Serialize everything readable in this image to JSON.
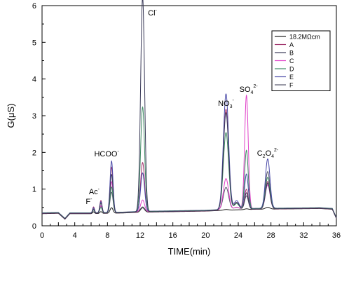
{
  "chart_data": {
    "type": "line",
    "title": "",
    "xlabel": "TIME(min)",
    "ylabel": "G(μS)",
    "xlim": [
      0,
      36
    ],
    "ylim": [
      0,
      6
    ],
    "xticks": [
      "0",
      "2",
      "4",
      "6",
      "8",
      "10",
      "12",
      "14",
      "16",
      "18",
      "20",
      "22",
      "24",
      "26",
      "28",
      "30",
      "32",
      "34",
      "36"
    ],
    "yticks": [
      "0",
      "1",
      "2",
      "3",
      "4",
      "5",
      "6"
    ],
    "grid": false,
    "legend_position": "top-right",
    "peaks": [
      {
        "name": "F",
        "charge": "-",
        "x": 6.3
      },
      {
        "name": "Ac",
        "charge": "-",
        "x": 7.2
      },
      {
        "name": "HCOO",
        "charge": "-",
        "x": 8.5
      },
      {
        "name": "Cl",
        "charge": "-",
        "x": 12.3
      },
      {
        "name": "NO",
        "sub": "3",
        "charge": "-",
        "x": 22.5
      },
      {
        "name": "SO",
        "sub": "4",
        "charge": "2-",
        "x": 25.0
      },
      {
        "name": "C",
        "sub": "2",
        "name2": "O",
        "sub2": "4",
        "charge": "2-",
        "x": 27.6
      }
    ],
    "baseline": {
      "x": [
        0,
        2,
        2.8,
        3.4,
        6,
        10,
        12,
        20,
        22,
        26,
        30,
        34,
        35.5,
        36
      ],
      "y": [
        0.33,
        0.34,
        0.18,
        0.33,
        0.33,
        0.35,
        0.37,
        0.4,
        0.42,
        0.45,
        0.46,
        0.47,
        0.45,
        0.2
      ]
    },
    "series": [
      {
        "name": "18.2MΩcm",
        "color": "#1c1c1c",
        "heights": [
          0.05,
          0.05,
          0.15,
          0.12,
          0.02,
          0.02,
          0.05
        ]
      },
      {
        "name": "A",
        "color": "#a0306a",
        "heights": [
          0.18,
          0.35,
          1.25,
          1.35,
          2.75,
          0.55,
          0.75
        ]
      },
      {
        "name": "B",
        "color": "#3a3a58",
        "heights": [
          0.12,
          0.28,
          1.05,
          5.85,
          2.65,
          0.45,
          0.7
        ]
      },
      {
        "name": "C",
        "color": "#e040c8",
        "heights": [
          0.1,
          0.2,
          0.85,
          0.32,
          0.85,
          3.1,
          0.65
        ]
      },
      {
        "name": "D",
        "color": "#3f8a64",
        "heights": [
          0.08,
          0.15,
          0.7,
          2.85,
          2.1,
          1.6,
          0.85
        ]
      },
      {
        "name": "E",
        "color": "#4a4aa8",
        "heights": [
          0.14,
          0.3,
          1.4,
          1.05,
          3.15,
          0.95,
          1.35
        ]
      },
      {
        "name": "F",
        "color": "#5a5a6e",
        "heights": [
          0.1,
          0.18,
          0.55,
          0.12,
          0.6,
          0.35,
          1.0
        ]
      }
    ]
  }
}
